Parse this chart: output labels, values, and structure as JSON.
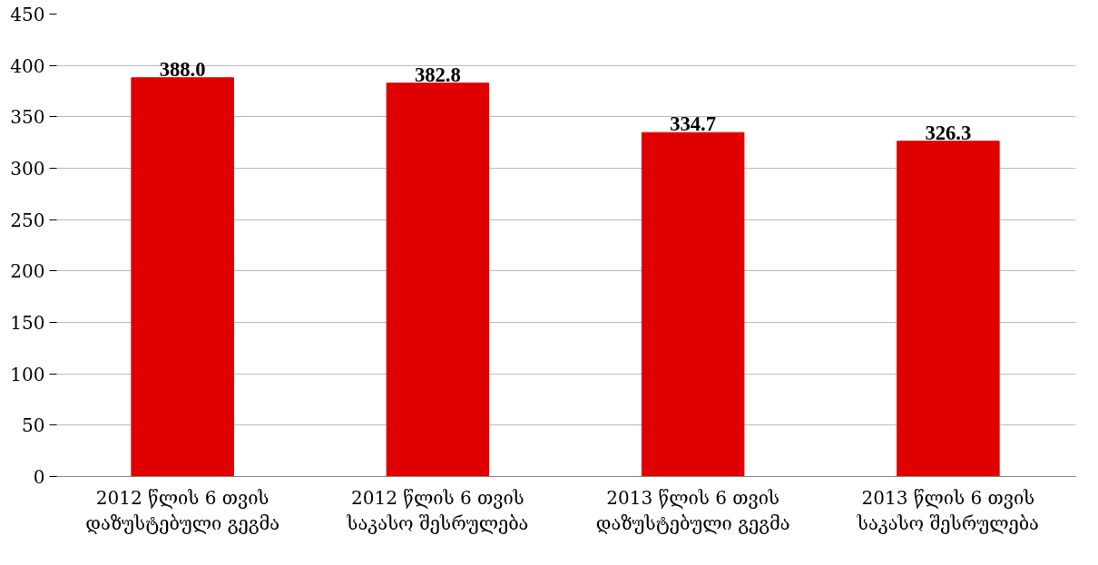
{
  "chart_data": {
    "type": "bar",
    "categories": [
      "2012 წლის 6 თვის\nდაზუსტებული გეგმა",
      "2012 წლის 6 თვის\nსაკასო შესრულება",
      "2013 წლის 6 თვის\nდაზუსტებული გეგმა",
      "2013 წლის 6 თვის\nსაკასო შესრულება"
    ],
    "values": [
      388.0,
      382.8,
      334.7,
      326.3
    ],
    "color": "#e00000",
    "ylim": [
      0,
      450
    ],
    "yticks": [
      0,
      50,
      100,
      150,
      200,
      250,
      300,
      350,
      400,
      450
    ],
    "value_labels": [
      "388.0",
      "382.8",
      "334.7",
      "326.3"
    ],
    "grid": "y"
  }
}
